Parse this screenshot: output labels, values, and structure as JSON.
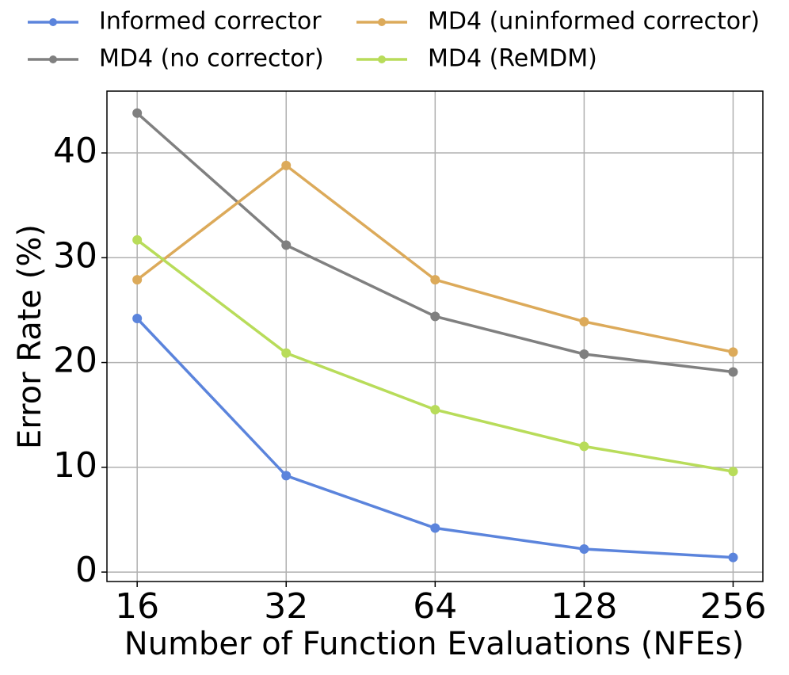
{
  "chart_data": {
    "type": "line",
    "x_label": "Number of Function Evaluations (NFEs)",
    "y_label": "Error Rate (%)",
    "x": [
      16,
      32,
      64,
      128,
      256
    ],
    "xscale": "log",
    "xlim": [
      13.9,
      294
    ],
    "xticks": [
      16,
      32,
      64,
      128,
      256
    ],
    "ylim": [
      -0.9,
      45.9
    ],
    "yticks": [
      0,
      10,
      20,
      30,
      40
    ],
    "grid": true,
    "legend": "top",
    "series": [
      {
        "name": "Informed corrector",
        "color": "#5b84dc",
        "values": [
          24.2,
          9.2,
          4.2,
          2.2,
          1.4
        ]
      },
      {
        "name": "MD4 (no corrector)",
        "color": "#808080",
        "values": [
          43.8,
          31.2,
          24.4,
          20.8,
          19.1
        ]
      },
      {
        "name": "MD4 (uninformed corrector)",
        "color": "#dcaa5a",
        "values": [
          27.9,
          38.8,
          27.9,
          23.9,
          21.0
        ]
      },
      {
        "name": "MD4 (ReMDM)",
        "color": "#b8dc5a",
        "values": [
          31.7,
          20.9,
          15.5,
          12.0,
          9.6
        ]
      }
    ]
  }
}
